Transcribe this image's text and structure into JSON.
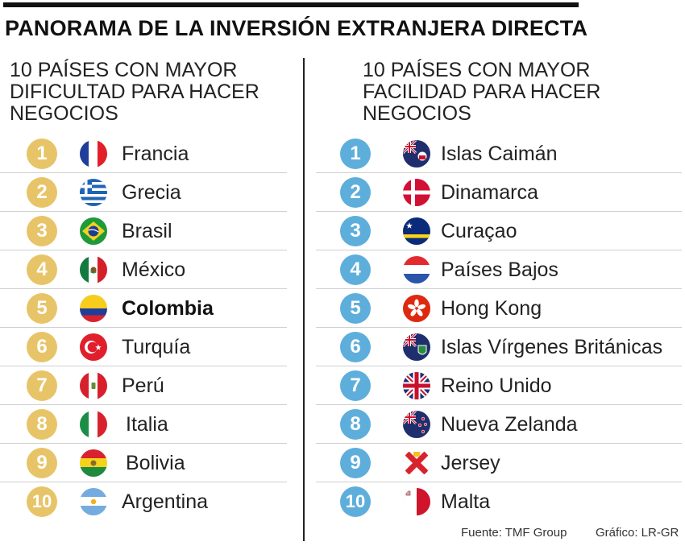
{
  "title": "PANORAMA DE LA INVERSIÓN EXTRANJERA DIRECTA",
  "left": {
    "heading": "10 PAÍSES CON MAYOR\nDIFICULTAD PARA HACER\nNEGOCIOS",
    "items": [
      {
        "rank": "1",
        "country": "Francia",
        "flag": "france-flag-icon"
      },
      {
        "rank": "2",
        "country": "Grecia",
        "flag": "greece-flag-icon"
      },
      {
        "rank": "3",
        "country": "Brasil",
        "flag": "brazil-flag-icon"
      },
      {
        "rank": "4",
        "country": "México",
        "flag": "mexico-flag-icon"
      },
      {
        "rank": "5",
        "country": "Colombia",
        "flag": "colombia-flag-icon"
      },
      {
        "rank": "6",
        "country": "Turquía",
        "flag": "turkey-flag-icon"
      },
      {
        "rank": "7",
        "country": "Perú",
        "flag": "peru-flag-icon"
      },
      {
        "rank": "8",
        "country": "Italia",
        "flag": "italy-flag-icon"
      },
      {
        "rank": "9",
        "country": "Bolivia",
        "flag": "bolivia-flag-icon"
      },
      {
        "rank": "10",
        "country": "Argentina",
        "flag": "argentina-flag-icon"
      }
    ]
  },
  "right": {
    "heading": "10 PAÍSES CON MAYOR\nFACILIDAD PARA HACER\nNEGOCIOS",
    "items": [
      {
        "rank": "1",
        "country": "Islas Caimán",
        "flag": "cayman-islands-flag-icon"
      },
      {
        "rank": "2",
        "country": "Dinamarca",
        "flag": "denmark-flag-icon"
      },
      {
        "rank": "3",
        "country": "Curaçao",
        "flag": "curacao-flag-icon"
      },
      {
        "rank": "4",
        "country": "Países Bajos",
        "flag": "netherlands-flag-icon"
      },
      {
        "rank": "5",
        "country": "Hong Kong",
        "flag": "hong-kong-flag-icon"
      },
      {
        "rank": "6",
        "country": "Islas Vírgenes Británicas",
        "flag": "british-virgin-islands-flag-icon"
      },
      {
        "rank": "7",
        "country": "Reino Unido",
        "flag": "united-kingdom-flag-icon"
      },
      {
        "rank": "8",
        "country": "Nueva Zelanda",
        "flag": "new-zealand-flag-icon"
      },
      {
        "rank": "9",
        "country": "Jersey",
        "flag": "jersey-flag-icon"
      },
      {
        "rank": "10",
        "country": "Malta",
        "flag": "malta-flag-icon"
      }
    ]
  },
  "colors": {
    "difficulty_rank": "#e8c468",
    "ease_rank": "#5eaedc"
  },
  "footer": {
    "source": "Fuente: TMF Group",
    "credit": "Gráfico: LR-GR"
  }
}
